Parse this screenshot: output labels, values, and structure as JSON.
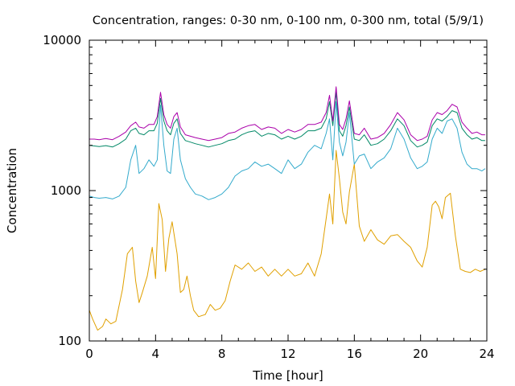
{
  "chart_data": {
    "type": "line",
    "title": "Concentration, ranges: 0-30 nm, 0-100 nm, 0-300 nm, total (5/9/1)",
    "xlabel": "Time [hour]",
    "ylabel": "Concentration",
    "xlim": [
      0,
      24
    ],
    "ylim": [
      100,
      10000
    ],
    "yscale": "log",
    "grid": false,
    "legend": "none",
    "x_ticks": [
      0,
      4,
      8,
      12,
      16,
      20,
      24
    ],
    "x_tick_labels": [
      "0",
      "4",
      "8",
      "12",
      "16",
      "20",
      "24"
    ],
    "y_ticks": [
      100,
      1000,
      10000
    ],
    "y_tick_labels": [
      "100",
      "1000",
      "10000"
    ],
    "series": [
      {
        "color": "#e0a000",
        "x": [
          0.0,
          0.2,
          0.5,
          0.8,
          1.0,
          1.3,
          1.6,
          2.0,
          2.3,
          2.6,
          2.8,
          3.0,
          3.2,
          3.5,
          3.8,
          4.0,
          4.2,
          4.4,
          4.6,
          4.8,
          5.0,
          5.3,
          5.5,
          5.7,
          5.9,
          6.1,
          6.3,
          6.6,
          7.0,
          7.3,
          7.6,
          7.9,
          8.2,
          8.5,
          8.8,
          9.2,
          9.6,
          10.0,
          10.4,
          10.8,
          11.2,
          11.6,
          12.0,
          12.4,
          12.8,
          13.2,
          13.6,
          14.0,
          14.3,
          14.5,
          14.7,
          14.9,
          15.1,
          15.3,
          15.5,
          15.7,
          16.0,
          16.3,
          16.6,
          17.0,
          17.4,
          17.8,
          18.2,
          18.6,
          19.0,
          19.4,
          19.8,
          20.1,
          20.4,
          20.7,
          20.9,
          21.1,
          21.3,
          21.5,
          21.8,
          22.1,
          22.4,
          22.7,
          23.0,
          23.3,
          23.6,
          23.9
        ],
        "y": [
          160,
          140,
          118,
          125,
          140,
          130,
          135,
          220,
          380,
          420,
          250,
          180,
          210,
          270,
          420,
          260,
          820,
          640,
          290,
          480,
          620,
          380,
          210,
          220,
          270,
          200,
          160,
          145,
          150,
          175,
          160,
          165,
          185,
          250,
          320,
          300,
          330,
          290,
          310,
          270,
          300,
          270,
          300,
          270,
          280,
          330,
          270,
          380,
          650,
          950,
          600,
          1850,
          1200,
          720,
          600,
          980,
          1500,
          580,
          460,
          550,
          470,
          440,
          500,
          510,
          460,
          420,
          340,
          310,
          420,
          800,
          850,
          780,
          650,
          900,
          960,
          500,
          300,
          290,
          285,
          300,
          290,
          300
        ]
      },
      {
        "color": "#33aacc",
        "x": [
          0.0,
          0.3,
          0.6,
          1.0,
          1.4,
          1.8,
          2.2,
          2.5,
          2.8,
          3.0,
          3.3,
          3.6,
          3.9,
          4.1,
          4.3,
          4.5,
          4.7,
          4.9,
          5.1,
          5.3,
          5.5,
          5.8,
          6.1,
          6.4,
          6.8,
          7.2,
          7.6,
          8.0,
          8.4,
          8.8,
          9.2,
          9.6,
          10.0,
          10.4,
          10.8,
          11.2,
          11.6,
          12.0,
          12.4,
          12.8,
          13.2,
          13.6,
          14.0,
          14.3,
          14.5,
          14.7,
          14.9,
          15.1,
          15.3,
          15.5,
          15.7,
          16.0,
          16.3,
          16.6,
          17.0,
          17.4,
          17.8,
          18.2,
          18.6,
          19.0,
          19.4,
          19.8,
          20.1,
          20.4,
          20.7,
          21.0,
          21.3,
          21.6,
          21.9,
          22.2,
          22.5,
          22.8,
          23.1,
          23.4,
          23.7,
          23.9
        ],
        "y": [
          920,
          900,
          890,
          900,
          880,
          920,
          1050,
          1600,
          2000,
          1300,
          1400,
          1600,
          1450,
          1600,
          3700,
          2000,
          1350,
          1300,
          2200,
          2600,
          1600,
          1200,
          1050,
          950,
          920,
          870,
          900,
          950,
          1050,
          1250,
          1350,
          1400,
          1550,
          1450,
          1500,
          1400,
          1300,
          1600,
          1400,
          1500,
          1800,
          2000,
          1900,
          2400,
          3000,
          1600,
          3900,
          2100,
          1700,
          2100,
          3300,
          1500,
          1700,
          1750,
          1400,
          1550,
          1650,
          1900,
          2600,
          2200,
          1650,
          1400,
          1450,
          1550,
          2200,
          2600,
          2400,
          2900,
          3000,
          2600,
          1800,
          1500,
          1400,
          1400,
          1350,
          1400
        ]
      },
      {
        "color": "#008866",
        "x": [
          0.0,
          0.3,
          0.6,
          1.0,
          1.4,
          1.8,
          2.2,
          2.5,
          2.8,
          3.0,
          3.3,
          3.6,
          3.9,
          4.1,
          4.3,
          4.5,
          4.7,
          4.9,
          5.1,
          5.3,
          5.5,
          5.8,
          6.1,
          6.4,
          6.8,
          7.2,
          7.6,
          8.0,
          8.4,
          8.8,
          9.2,
          9.6,
          10.0,
          10.4,
          10.8,
          11.2,
          11.6,
          12.0,
          12.4,
          12.8,
          13.2,
          13.6,
          14.0,
          14.3,
          14.5,
          14.7,
          14.9,
          15.1,
          15.3,
          15.5,
          15.7,
          16.0,
          16.3,
          16.6,
          17.0,
          17.4,
          17.8,
          18.2,
          18.6,
          19.0,
          19.4,
          19.8,
          20.1,
          20.4,
          20.7,
          21.0,
          21.3,
          21.6,
          21.9,
          22.2,
          22.5,
          22.8,
          23.1,
          23.4,
          23.7,
          23.9
        ],
        "y": [
          2000,
          1980,
          1960,
          1990,
          1950,
          2050,
          2200,
          2500,
          2600,
          2400,
          2350,
          2500,
          2500,
          2800,
          4100,
          2900,
          2500,
          2350,
          2800,
          3000,
          2400,
          2150,
          2100,
          2050,
          2000,
          1950,
          2000,
          2050,
          2150,
          2200,
          2350,
          2450,
          2500,
          2300,
          2400,
          2350,
          2200,
          2300,
          2200,
          2300,
          2500,
          2500,
          2600,
          3000,
          3900,
          2700,
          4500,
          2500,
          2300,
          2700,
          3600,
          2200,
          2150,
          2350,
          2000,
          2050,
          2200,
          2500,
          3000,
          2700,
          2150,
          1950,
          2000,
          2100,
          2700,
          3000,
          2900,
          3100,
          3400,
          3300,
          2600,
          2350,
          2200,
          2250,
          2150,
          2150
        ]
      },
      {
        "color": "#aa00aa",
        "x": [
          0.0,
          0.3,
          0.6,
          1.0,
          1.4,
          1.8,
          2.2,
          2.5,
          2.8,
          3.0,
          3.3,
          3.6,
          3.9,
          4.1,
          4.3,
          4.5,
          4.7,
          4.9,
          5.1,
          5.3,
          5.5,
          5.8,
          6.1,
          6.4,
          6.8,
          7.2,
          7.6,
          8.0,
          8.4,
          8.8,
          9.2,
          9.6,
          10.0,
          10.4,
          10.8,
          11.2,
          11.6,
          12.0,
          12.4,
          12.8,
          13.2,
          13.6,
          14.0,
          14.3,
          14.5,
          14.7,
          14.9,
          15.1,
          15.3,
          15.5,
          15.7,
          16.0,
          16.3,
          16.6,
          17.0,
          17.4,
          17.8,
          18.2,
          18.6,
          19.0,
          19.4,
          19.8,
          20.1,
          20.4,
          20.7,
          21.0,
          21.3,
          21.6,
          21.9,
          22.2,
          22.5,
          22.8,
          23.1,
          23.4,
          23.7,
          23.9
        ],
        "y": [
          2200,
          2200,
          2180,
          2220,
          2180,
          2300,
          2450,
          2700,
          2850,
          2650,
          2600,
          2750,
          2750,
          3100,
          4500,
          3200,
          2750,
          2600,
          3100,
          3300,
          2650,
          2350,
          2300,
          2250,
          2200,
          2150,
          2200,
          2250,
          2400,
          2450,
          2600,
          2700,
          2750,
          2550,
          2650,
          2600,
          2400,
          2550,
          2450,
          2550,
          2750,
          2750,
          2850,
          3300,
          4300,
          2900,
          4900,
          2750,
          2550,
          3000,
          3950,
          2400,
          2350,
          2600,
          2200,
          2250,
          2400,
          2750,
          3300,
          2950,
          2350,
          2150,
          2200,
          2300,
          2950,
          3300,
          3200,
          3400,
          3750,
          3600,
          2850,
          2600,
          2400,
          2450,
          2350,
          2350
        ]
      }
    ]
  }
}
